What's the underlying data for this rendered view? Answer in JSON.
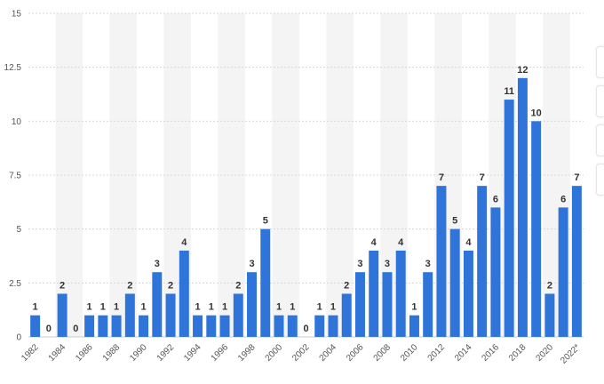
{
  "colors": {
    "bar": "#2f74d8",
    "band": "#f4f4f4",
    "grid": "#d7d7d7",
    "axis": "#cccccc"
  },
  "chart_data": {
    "type": "bar",
    "categories": [
      "1982",
      "1983",
      "1984",
      "1985",
      "1986",
      "1987",
      "1988",
      "1989",
      "1990",
      "1991",
      "1992",
      "1993",
      "1994",
      "1995",
      "1996",
      "1997",
      "1998",
      "1999",
      "2000",
      "2001",
      "2002",
      "2003",
      "2004",
      "2005",
      "2006",
      "2007",
      "2008",
      "2009",
      "2010",
      "2011",
      "2012",
      "2013",
      "2014",
      "2015",
      "2016",
      "2017",
      "2018",
      "2019",
      "2020",
      "2021",
      "2022*"
    ],
    "x_tick_labels": [
      "1982",
      "1984",
      "1986",
      "1988",
      "1990",
      "1992",
      "1994",
      "1996",
      "1998",
      "2000",
      "2002",
      "2004",
      "2006",
      "2008",
      "2010",
      "2012",
      "2014",
      "2016",
      "2018",
      "2020",
      "2022*"
    ],
    "values": [
      1,
      0,
      2,
      0,
      1,
      1,
      1,
      2,
      1,
      3,
      2,
      4,
      1,
      1,
      1,
      2,
      3,
      5,
      1,
      1,
      0,
      1,
      1,
      2,
      3,
      4,
      3,
      4,
      1,
      3,
      7,
      5,
      4,
      7,
      6,
      11,
      12,
      10,
      2,
      6,
      7
    ],
    "ylim": [
      0,
      15
    ],
    "y_ticks": [
      "0",
      "2.5",
      "5",
      "7.5",
      "10",
      "12.5",
      "15"
    ],
    "title": "",
    "xlabel": "",
    "ylabel": "",
    "grid": true,
    "legend": "none"
  }
}
